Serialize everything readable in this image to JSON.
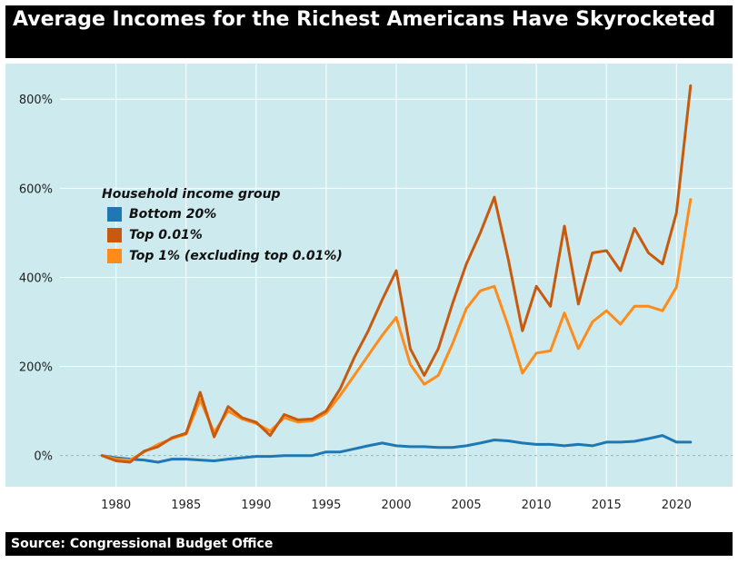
{
  "header": {
    "title": "Average Incomes for the Richest Americans Have Skyrocketed"
  },
  "footer": {
    "source": "Source: Congressional Budget Office"
  },
  "colors": {
    "panel": "#cdebef",
    "grid": "#ffffff",
    "bottom20": "#1f77b4",
    "top001": "#c85a0e",
    "top1": "#ff8c1a"
  },
  "chart_data": {
    "type": "line",
    "title": "Average Incomes for the Richest Americans Have Skyrocketed",
    "xlabel": "",
    "ylabel": "",
    "xlim": [
      1976,
      2024
    ],
    "ylim": [
      -70,
      880
    ],
    "x_ticks": [
      1980,
      1985,
      1990,
      1995,
      2000,
      2005,
      2010,
      2015,
      2020
    ],
    "x_tick_labels": [
      "1980",
      "1985",
      "1990",
      "1995",
      "2000",
      "2005",
      "2010",
      "2015",
      "2020"
    ],
    "y_ticks": [
      0,
      200,
      400,
      600,
      800
    ],
    "y_tick_labels": [
      "0%",
      "200%",
      "400%",
      "600%",
      "800%"
    ],
    "grid": true,
    "legend": {
      "title": "Household income group",
      "placement": "upper-left"
    },
    "x": [
      1979,
      1980,
      1981,
      1982,
      1983,
      1984,
      1985,
      1986,
      1987,
      1988,
      1989,
      1990,
      1991,
      1992,
      1993,
      1994,
      1995,
      1996,
      1997,
      1998,
      1999,
      2000,
      2001,
      2002,
      2003,
      2004,
      2005,
      2006,
      2007,
      2008,
      2009,
      2010,
      2011,
      2012,
      2013,
      2014,
      2015,
      2016,
      2017,
      2018,
      2019,
      2020,
      2021
    ],
    "series": [
      {
        "name": "Bottom 20%",
        "color": "#1f77b4",
        "values": [
          0,
          -5,
          -8,
          -10,
          -15,
          -8,
          -8,
          -10,
          -12,
          -8,
          -5,
          -2,
          -2,
          0,
          0,
          0,
          8,
          8,
          15,
          22,
          28,
          22,
          20,
          20,
          18,
          18,
          22,
          28,
          35,
          33,
          28,
          25,
          25,
          22,
          25,
          22,
          30,
          30,
          32,
          38,
          45,
          30,
          30
        ]
      },
      {
        "name": "Top 0.01%",
        "color": "#c85a0e",
        "values": [
          0,
          -12,
          -15,
          10,
          20,
          40,
          50,
          142,
          42,
          110,
          85,
          75,
          45,
          92,
          80,
          82,
          100,
          150,
          220,
          280,
          350,
          415,
          240,
          180,
          240,
          340,
          430,
          500,
          580,
          440,
          280,
          380,
          335,
          515,
          340,
          455,
          460,
          415,
          510,
          455,
          430,
          545,
          830
        ]
      },
      {
        "name": "Top 1% (excluding top 0.01%)",
        "color": "#ff8c1a",
        "values": [
          0,
          -8,
          -10,
          8,
          25,
          38,
          48,
          125,
          52,
          100,
          82,
          72,
          55,
          85,
          75,
          78,
          95,
          135,
          180,
          225,
          270,
          310,
          205,
          160,
          180,
          250,
          330,
          370,
          380,
          290,
          185,
          230,
          235,
          320,
          240,
          300,
          325,
          295,
          335,
          335,
          325,
          378,
          575
        ]
      }
    ]
  }
}
